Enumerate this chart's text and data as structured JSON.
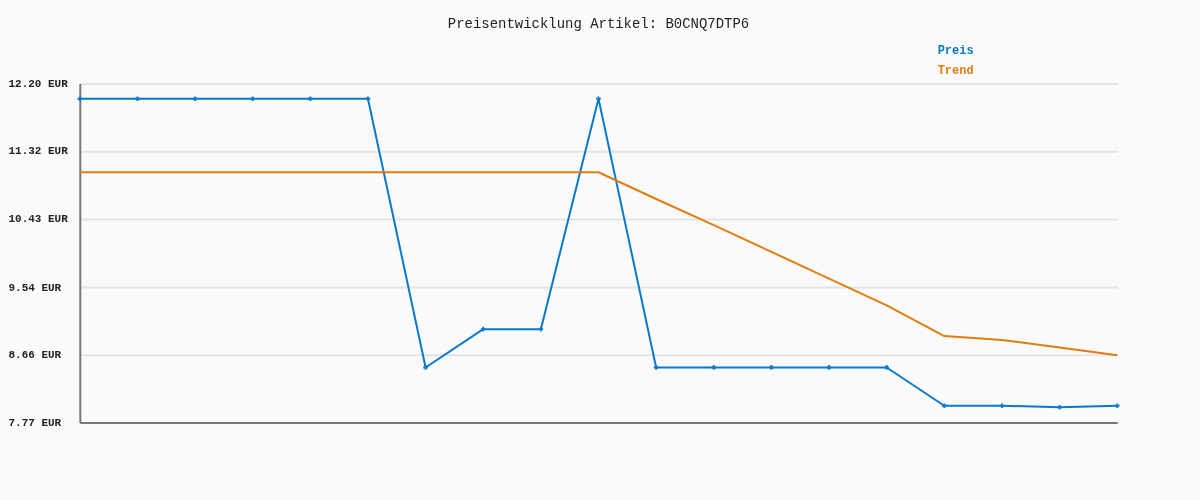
{
  "chart_data": {
    "type": "line",
    "title": "Preisentwicklung Artikel: B0CNQ7DTP6",
    "categories": [
      null,
      null,
      null,
      null,
      null,
      null,
      null,
      null,
      null,
      null,
      null,
      null,
      null,
      null,
      null,
      null,
      null,
      null,
      null
    ],
    "series": [
      {
        "name": "Preis",
        "color": "#0a79cc",
        "marker": "cross",
        "values": [
          12.0,
          12.0,
          12.0,
          12.0,
          12.0,
          12.0,
          8.49,
          8.99,
          8.99,
          12.0,
          8.49,
          8.49,
          8.49,
          8.49,
          8.49,
          7.99,
          7.99,
          7.97,
          7.99
        ]
      },
      {
        "name": "Trend",
        "color": "#e07d10",
        "values": [
          11.04,
          11.04,
          11.04,
          11.04,
          11.04,
          11.04,
          11.04,
          11.04,
          11.04,
          11.04,
          10.69,
          10.35,
          10.0,
          9.65,
          9.3,
          8.9,
          8.85,
          8.75,
          8.65
        ]
      }
    ],
    "ylim": [
      7.77,
      12.2
    ],
    "yticks": [
      {
        "value": 7.77,
        "label": "7.77 EUR"
      },
      {
        "value": 8.66,
        "label": "8.66 EUR"
      },
      {
        "value": 9.54,
        "label": "9.54 EUR"
      },
      {
        "value": 10.43,
        "label": "10.43 EUR"
      },
      {
        "value": 11.32,
        "label": "11.32 EUR"
      },
      {
        "value": 12.2,
        "label": "12.20 EUR"
      }
    ],
    "grid": "y",
    "legend": "top right",
    "tick_labels": "y"
  }
}
